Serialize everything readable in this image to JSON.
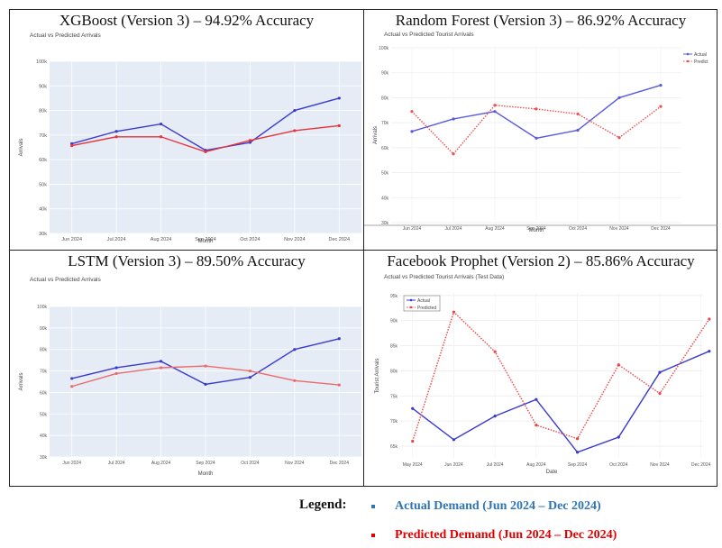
{
  "chart_data": [
    {
      "type": "line",
      "title": "XGBoost (Version 3) – 94.92% Accuracy",
      "subtitle": "Actual vs Predicted Arrivals",
      "xlabel": "Month",
      "ylabel": "Arrivals",
      "categories": [
        "Jun 2024",
        "Jul 2024",
        "Aug 2024",
        "Sep 2024",
        "Oct 2024",
        "Nov 2024",
        "Dec 2024"
      ],
      "ylim": [
        30000,
        100000
      ],
      "yticks": [
        "30k",
        "40k",
        "50k",
        "60k",
        "70k",
        "80k",
        "90k",
        "100k"
      ],
      "series": [
        {
          "values": [
            66500,
            71500,
            74500,
            63800,
            67000,
            80000,
            85000
          ],
          "color": "#3a3acf"
        },
        {
          "values": [
            65700,
            69300,
            69300,
            63200,
            67800,
            71800,
            73800
          ],
          "color": "#e8323c"
        }
      ],
      "grid": true,
      "background": "#e5ecf6"
    },
    {
      "type": "line",
      "title": "Random Forest (Version 3) – 86.92% Accuracy",
      "subtitle": "Actual vs Predicted Tourist Arrivals",
      "xlabel": "Month",
      "ylabel": "Arrivals",
      "categories": [
        "Jun 2024",
        "Jul 2024",
        "Aug 2024",
        "Sep 2024",
        "Oct 2024",
        "Nov 2024",
        "Dec 2024"
      ],
      "ylim": [
        30000,
        100000
      ],
      "yticks": [
        "30k",
        "40k",
        "50k",
        "60k",
        "70k",
        "80k",
        "90k",
        "100k"
      ],
      "series": [
        {
          "name": "Actual",
          "values": [
            66500,
            71500,
            74500,
            63800,
            67000,
            80000,
            85000
          ],
          "color": "#5a5ae0"
        },
        {
          "name": "Predict",
          "values": [
            74500,
            57500,
            77000,
            75500,
            73500,
            64000,
            76500
          ],
          "color": "#ee5050",
          "dash": true
        }
      ],
      "grid": true,
      "legend": "top-right",
      "background": "#ffffff"
    },
    {
      "type": "line",
      "title": "LSTM (Version 3) – 89.50% Accuracy",
      "subtitle": "Actual vs Predicted Arrivals",
      "xlabel": "Month",
      "ylabel": "Arrivals",
      "categories": [
        "Jun 2024",
        "Jul 2024",
        "Aug 2024",
        "Sep 2024",
        "Oct 2024",
        "Nov 2024",
        "Dec 2024"
      ],
      "ylim": [
        30000,
        100000
      ],
      "yticks": [
        "30k",
        "40k",
        "50k",
        "60k",
        "70k",
        "80k",
        "90k",
        "100k"
      ],
      "series": [
        {
          "values": [
            66500,
            71500,
            74500,
            63800,
            67000,
            80000,
            85000
          ],
          "color": "#3a3acf"
        },
        {
          "values": [
            62800,
            68800,
            71500,
            72300,
            70000,
            65500,
            63500
          ],
          "color": "#ec6a6a"
        }
      ],
      "grid": true,
      "background": "#e5ecf6"
    },
    {
      "type": "line",
      "title": "Facebook Prophet (Version 2) – 85.86% Accuracy",
      "subtitle": "Actual vs Predicted Tourist Arrivals (Test Data)",
      "xlabel": "Date",
      "ylabel": "Tourist Arrivals",
      "categories": [
        "May 2024",
        "Jun 2024",
        "Jul 2024",
        "Aug 2024",
        "Sep 2024",
        "Oct 2024",
        "Nov 2024",
        "Dec 2024"
      ],
      "x_numeric": [
        0,
        1,
        2,
        3,
        4,
        5,
        6,
        7
      ],
      "ylim": [
        62500,
        95500
      ],
      "yticks": [
        "65k",
        "70k",
        "75k",
        "80k",
        "85k",
        "90k",
        "95k"
      ],
      "series": [
        {
          "name": "Actual",
          "x": [
            0,
            1,
            2,
            3,
            4,
            5,
            6,
            7.2
          ],
          "values": [
            72500,
            66300,
            71000,
            74300,
            63800,
            66800,
            79700,
            83900
          ],
          "color": "#3a3acf"
        },
        {
          "name": "Predicted",
          "x": [
            0,
            1,
            2,
            3,
            4,
            5,
            6,
            7.2
          ],
          "values": [
            66000,
            91700,
            83800,
            69200,
            66500,
            81200,
            75500,
            90300
          ],
          "color": "#ee4444",
          "dash": true
        }
      ],
      "grid": true,
      "legend": "top-left",
      "background": "#ffffff"
    }
  ],
  "legend": {
    "label": "Legend:",
    "actual": "Actual Demand (Jun 2024 – Dec 2024)",
    "predicted": "Predicted Demand (Jun 2024 – Dec 2024)",
    "actual_color": "#2e75b6",
    "predicted_color": "#e00000"
  }
}
